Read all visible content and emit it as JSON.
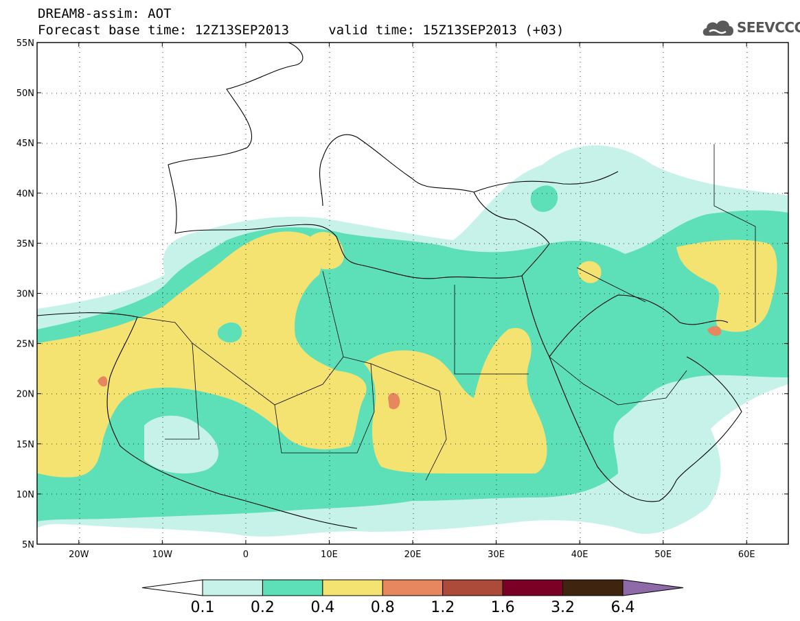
{
  "header": {
    "title_line1": "DREAM8-assim: AOT",
    "title_line2": "Forecast base time: 12Z13SEP2013     valid time: 15Z13SEP2013 (+03)"
  },
  "logo": {
    "text": "SEEVCCC",
    "icon": "cloud-icon"
  },
  "map": {
    "lon_range": [
      -25,
      65
    ],
    "lat_range": [
      5,
      55
    ],
    "lat_ticks": [
      {
        "value": 55,
        "label": "55N"
      },
      {
        "value": 50,
        "label": "50N"
      },
      {
        "value": 45,
        "label": "45N"
      },
      {
        "value": 40,
        "label": "40N"
      },
      {
        "value": 35,
        "label": "35N"
      },
      {
        "value": 30,
        "label": "30N"
      },
      {
        "value": 25,
        "label": "25N"
      },
      {
        "value": 20,
        "label": "20N"
      },
      {
        "value": 15,
        "label": "15N"
      },
      {
        "value": 10,
        "label": "10N"
      },
      {
        "value": 5,
        "label": "5N"
      }
    ],
    "lon_ticks": [
      {
        "value": -20,
        "label": "20W"
      },
      {
        "value": -10,
        "label": "10W"
      },
      {
        "value": 0,
        "label": "0"
      },
      {
        "value": 10,
        "label": "10E"
      },
      {
        "value": 20,
        "label": "20E"
      },
      {
        "value": 30,
        "label": "30E"
      },
      {
        "value": 40,
        "label": "40E"
      },
      {
        "value": 50,
        "label": "50E"
      },
      {
        "value": 60,
        "label": "60E"
      }
    ],
    "grid": "dotted"
  },
  "colorbar": {
    "labels": [
      "0.1",
      "0.2",
      "0.4",
      "0.8",
      "1.2",
      "1.6",
      "3.2",
      "6.4"
    ],
    "colors": [
      "#ffffff",
      "#c7f2ea",
      "#5ddfb8",
      "#f4e271",
      "#e6875f",
      "#ac4b3a",
      "#7a0025",
      "#3f2410",
      "#8f6aa8"
    ]
  }
}
